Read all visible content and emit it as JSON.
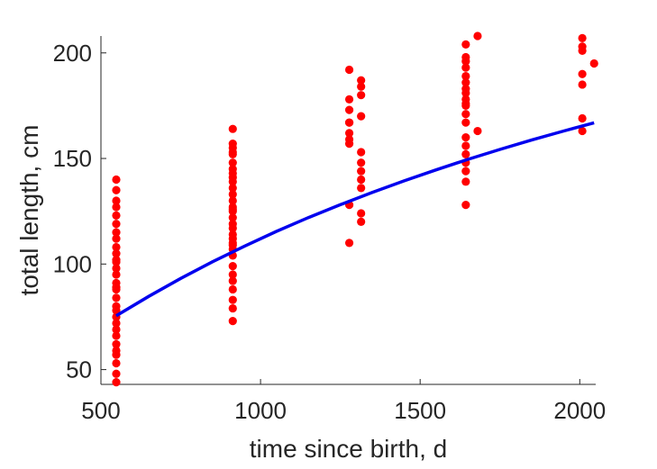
{
  "chart_data": {
    "type": "scatter",
    "title": "",
    "xlabel": "time since birth, d",
    "ylabel": "total length, cm",
    "xlim": [
      500,
      2050
    ],
    "ylim": [
      43,
      208
    ],
    "xticks": [
      500,
      1000,
      1500,
      2000
    ],
    "yticks": [
      50,
      100,
      150,
      200
    ],
    "grid": false,
    "legend": "none",
    "colors": {
      "points": "#ff0000",
      "fit": "#0000ee",
      "axis": "#262626"
    },
    "series": [
      {
        "kind": "points",
        "x": [
          548,
          548,
          548,
          548,
          548,
          548,
          548,
          548,
          548,
          548,
          548,
          548,
          548,
          548,
          548,
          548,
          548,
          548,
          548,
          548,
          548,
          548,
          548,
          548,
          548,
          548,
          548,
          548,
          548,
          548,
          913,
          913,
          913,
          913,
          913,
          913,
          913,
          913,
          913,
          913,
          913,
          913,
          913,
          913,
          913,
          913,
          913,
          913,
          913,
          913,
          913,
          913,
          913,
          913,
          913,
          913,
          913,
          913,
          913,
          913,
          913,
          913,
          1278,
          1278,
          1278,
          1278,
          1278,
          1278,
          1278,
          1278,
          1278,
          1278,
          1315,
          1315,
          1315,
          1315,
          1315,
          1315,
          1315,
          1315,
          1315,
          1315,
          1315,
          1643,
          1643,
          1643,
          1643,
          1643,
          1643,
          1643,
          1643,
          1643,
          1643,
          1643,
          1643,
          1643,
          1643,
          1643,
          1643,
          1643,
          1643,
          1643,
          1643,
          1680,
          1680,
          2008,
          2008,
          2008,
          2008,
          2008,
          2008,
          2008,
          2045
        ],
        "y": [
          140,
          135,
          130,
          127,
          123,
          119,
          115,
          112,
          108,
          105,
          102,
          98,
          95,
          91,
          89,
          84,
          80,
          78,
          75,
          72,
          69,
          66,
          62,
          59,
          57,
          53,
          48,
          44,
          88,
          101,
          164,
          157,
          155,
          152,
          148,
          145,
          141,
          139,
          136,
          133,
          130,
          127,
          125,
          122,
          119,
          117,
          114,
          112,
          109,
          107,
          104,
          99,
          95,
          92,
          88,
          83,
          79,
          73,
          153,
          143,
          126,
          110,
          192,
          178,
          173,
          167,
          162,
          159,
          157,
          128,
          110,
          167,
          187,
          184,
          180,
          170,
          153,
          148,
          144,
          140,
          136,
          124,
          120,
          204,
          198,
          193,
          189,
          186,
          181,
          178,
          175,
          171,
          167,
          160,
          156,
          152,
          148,
          144,
          139,
          128,
          196,
          183,
          176,
          208,
          163,
          207,
          203,
          201,
          190,
          185,
          169,
          163,
          195
        ]
      },
      {
        "kind": "fit",
        "x": [
          548,
          650,
          750,
          850,
          950,
          1050,
          1150,
          1250,
          1350,
          1450,
          1550,
          1650,
          1750,
          1850,
          1950,
          2045
        ],
        "y": [
          75.5,
          84.7,
          93.2,
          101.1,
          108.5,
          115.5,
          122.0,
          128.1,
          133.9,
          139.4,
          144.6,
          149.6,
          154.3,
          158.8,
          163.0,
          166.9
        ]
      }
    ]
  }
}
